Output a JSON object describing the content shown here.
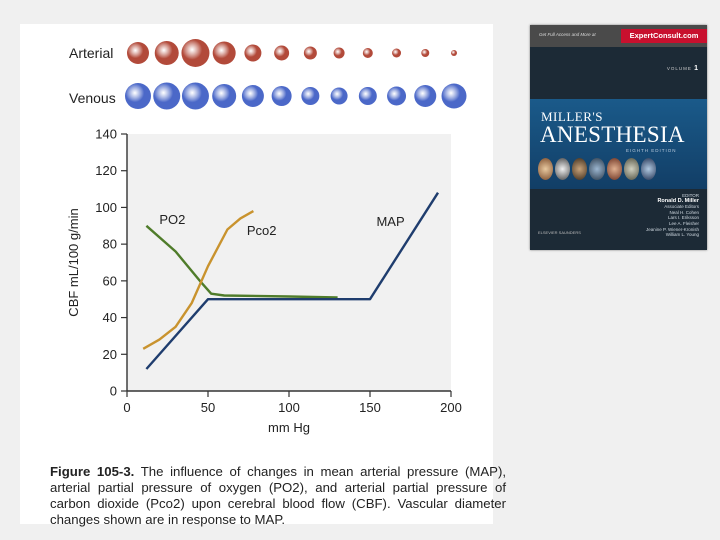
{
  "figure": {
    "row_labels": {
      "arterial": "Arterial",
      "venous": "Venous"
    },
    "vessel_diameters": {
      "arterial": [
        22,
        24,
        28,
        23,
        17,
        15,
        13,
        11,
        10,
        9,
        8,
        6
      ],
      "venous": [
        26,
        27,
        27,
        24,
        22,
        20,
        18,
        17,
        18,
        19,
        22,
        25
      ]
    },
    "colors": {
      "arterial": "#b24a3a",
      "venous": "#4b68c8",
      "po2": "#4f7c2a",
      "pco2": "#c9932e",
      "map": "#1f3d6e"
    },
    "caption": {
      "label": "Figure 105-3.",
      "text": "The influence of changes in mean arterial pressure (MAP), arterial partial pressure of oxygen (PO2), and arterial partial pressure of carbon dioxide (Pco2) upon cerebral blood flow (CBF). Vascular diameter changes shown are in response to MAP."
    }
  },
  "chart_data": {
    "type": "line",
    "xlabel": "mm Hg",
    "ylabel": "CBF mL/100 g/min",
    "xlim": [
      0,
      200
    ],
    "ylim": [
      0,
      140
    ],
    "x_ticks": [
      "0",
      "50",
      "100",
      "150",
      "200"
    ],
    "y_ticks": [
      "0",
      "20",
      "40",
      "60",
      "80",
      "100",
      "120",
      "140"
    ],
    "grid": false,
    "series": [
      {
        "name": "PO2",
        "color": "#4f7c2a",
        "points": [
          [
            12,
            90
          ],
          [
            30,
            76
          ],
          [
            45,
            60
          ],
          [
            52,
            53
          ],
          [
            60,
            52
          ],
          [
            100,
            51.5
          ],
          [
            130,
            51
          ]
        ]
      },
      {
        "name": "Pco2",
        "color": "#c9932e",
        "points": [
          [
            10,
            23
          ],
          [
            20,
            28
          ],
          [
            30,
            35
          ],
          [
            40,
            48
          ],
          [
            50,
            68
          ],
          [
            62,
            88
          ],
          [
            70,
            94
          ],
          [
            78,
            98
          ]
        ]
      },
      {
        "name": "MAP",
        "color": "#1f3d6e",
        "points": [
          [
            12,
            12
          ],
          [
            50,
            50
          ],
          [
            150,
            50
          ],
          [
            192,
            108
          ]
        ]
      }
    ],
    "annotations": [
      {
        "text": "PO2",
        "x": 20,
        "y": 91
      },
      {
        "text": "Pco2",
        "x": 74,
        "y": 85
      },
      {
        "text": "MAP",
        "x": 154,
        "y": 90
      }
    ]
  },
  "book": {
    "promo": "Get Full Access and More at",
    "brand": "ExpertConsult.com",
    "volume_label": "VOLUME",
    "volume_number": "1",
    "title_line1": "MILLER'S",
    "title_line2": "ANESTHESIA",
    "edition": "EIGHTH EDITION",
    "editor_label": "EDITOR",
    "editor": "Ronald D. Miller",
    "associate_label": "Associate Editors",
    "associates": [
      "Neal H. Cohen",
      "Lars I. Eriksson",
      "Lee A. Fleisher",
      "Jeanine P. Wiener-Kronish",
      "William L. Young"
    ],
    "publisher": "ELSEVIER SAUNDERS"
  }
}
